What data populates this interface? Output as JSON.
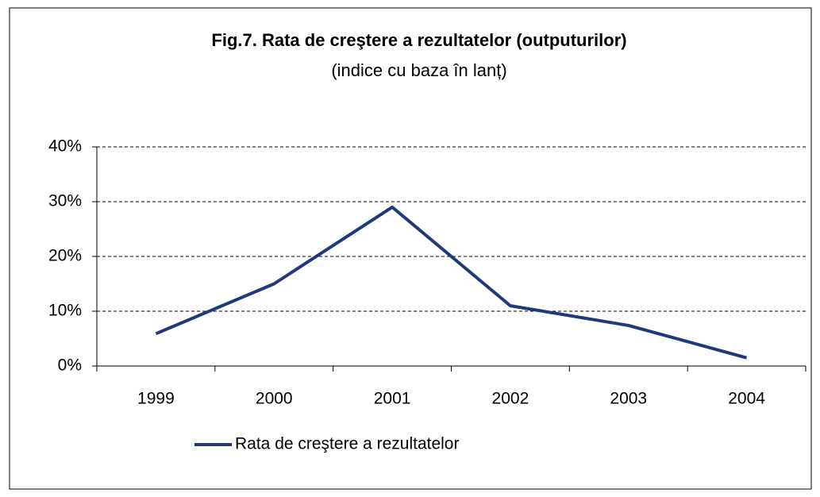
{
  "chart_data": {
    "type": "line",
    "title": "Fig.7. Rata de creştere a rezultatelor (outputurilor)",
    "subtitle": "(indice cu baza în lanț)",
    "categories": [
      "1999",
      "2000",
      "2001",
      "2002",
      "2003",
      "2004"
    ],
    "series": [
      {
        "name": "Rata de creştere a rezultatelor",
        "color": "#1f3a7a",
        "values": [
          5.9,
          15,
          29,
          11,
          7.4,
          1.5
        ]
      }
    ],
    "ylim": [
      0,
      40
    ],
    "yticks": [
      {
        "value": 0,
        "label": "0%"
      },
      {
        "value": 10,
        "label": "10%"
      },
      {
        "value": 20,
        "label": "20%"
      },
      {
        "value": 30,
        "label": "30%"
      },
      {
        "value": 40,
        "label": "40%"
      }
    ],
    "grid": true
  }
}
